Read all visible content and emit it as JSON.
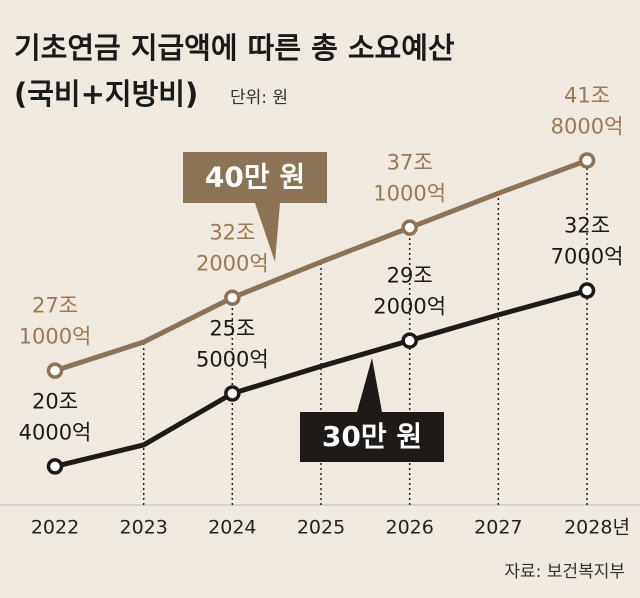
{
  "chart_data": {
    "type": "line",
    "title": "기초연금 지급액에 따른 총 소요예산",
    "subtitle": "(국비+지방비)",
    "unit_note": "단위: 원",
    "source": "자료: 보건복지부",
    "categories": [
      "2022",
      "2023",
      "2024",
      "2025",
      "2026",
      "2027",
      "2028년"
    ],
    "ylim": [
      17,
      44
    ],
    "series": [
      {
        "name": "40만 원",
        "color": "#8c7356",
        "label_color": "#9a7a55",
        "values": [
          27.1,
          29.1,
          32.2,
          34.7,
          37.1,
          39.5,
          41.8
        ],
        "value_labels": [
          [
            "27조",
            "1000억"
          ],
          null,
          [
            "32조",
            "2000억"
          ],
          null,
          [
            "37조",
            "1000억"
          ],
          null,
          [
            "41조",
            "8000억"
          ]
        ]
      },
      {
        "name": "30만 원",
        "color": "#1e1a18",
        "label_color": "#1e1a18",
        "values": [
          20.4,
          21.9,
          25.5,
          27.4,
          29.2,
          31.0,
          32.7
        ],
        "value_labels": [
          [
            "20조",
            "4000억"
          ],
          null,
          [
            "25조",
            "5000억"
          ],
          null,
          [
            "29조",
            "2000억"
          ],
          null,
          [
            "32조",
            "7000억"
          ]
        ]
      }
    ]
  }
}
